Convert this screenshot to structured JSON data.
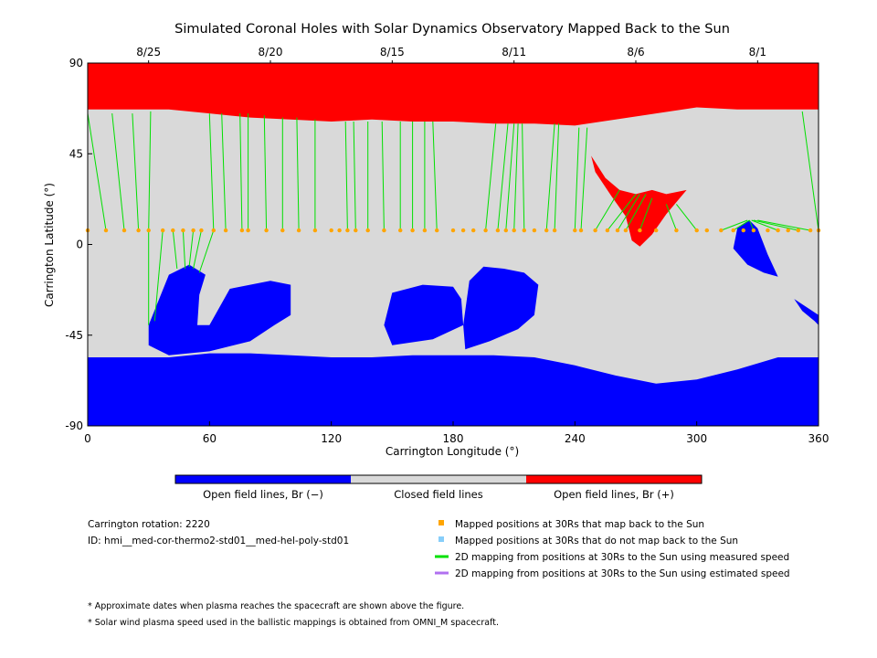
{
  "chart_data": {
    "type": "heatmap",
    "title": "Simulated Coronal Holes with Solar Dynamics Observatory Mapped Back to the Sun",
    "xlabel": "Carrington Longitude (°)",
    "ylabel": "Carrington Latitude (°)",
    "xlim": [
      0,
      360
    ],
    "ylim": [
      -90,
      90
    ],
    "x_ticks": [
      "0",
      "60",
      "120",
      "180",
      "240",
      "300",
      "360"
    ],
    "x_tick_values": [
      0,
      60,
      120,
      180,
      240,
      300,
      360
    ],
    "y_ticks": [
      "90",
      "45",
      "0",
      "-45",
      "-90"
    ],
    "y_tick_values": [
      90,
      45,
      0,
      -45,
      -90
    ],
    "top_dates": [
      "8/25",
      "8/20",
      "8/15",
      "8/11",
      "8/6",
      "8/1"
    ],
    "top_date_longitudes": [
      30,
      90,
      150,
      210,
      270,
      330
    ],
    "legend": {
      "neg": "Open field lines, Br (−)",
      "closed": "Closed field lines",
      "pos": "Open field lines, Br (+)"
    },
    "colors": {
      "neg": "#0000ff",
      "closed": "#d9d9d9",
      "pos": "#ff0000",
      "mapped": "#ffa500",
      "unmapped": "#87cefa",
      "measured": "#00e000",
      "estimated": "#b070f0"
    },
    "north_pos_boundary": [
      [
        0,
        67
      ],
      [
        20,
        67
      ],
      [
        40,
        67
      ],
      [
        60,
        65
      ],
      [
        80,
        63
      ],
      [
        100,
        62
      ],
      [
        120,
        61
      ],
      [
        140,
        62
      ],
      [
        160,
        61
      ],
      [
        180,
        61
      ],
      [
        200,
        60
      ],
      [
        220,
        60
      ],
      [
        240,
        59
      ],
      [
        260,
        62
      ],
      [
        280,
        65
      ],
      [
        300,
        68
      ],
      [
        320,
        67
      ],
      [
        340,
        67
      ],
      [
        360,
        67
      ]
    ],
    "south_neg_boundary": [
      [
        0,
        -56
      ],
      [
        20,
        -56
      ],
      [
        40,
        -56
      ],
      [
        60,
        -54
      ],
      [
        80,
        -54
      ],
      [
        100,
        -55
      ],
      [
        120,
        -56
      ],
      [
        140,
        -56
      ],
      [
        160,
        -55
      ],
      [
        180,
        -55
      ],
      [
        200,
        -55
      ],
      [
        220,
        -56
      ],
      [
        240,
        -60
      ],
      [
        260,
        -65
      ],
      [
        280,
        -69
      ],
      [
        300,
        -67
      ],
      [
        320,
        -62
      ],
      [
        340,
        -56
      ],
      [
        360,
        -56
      ]
    ],
    "coronal_holes": [
      {
        "polarity": "neg",
        "points": [
          [
            30,
            -40
          ],
          [
            40,
            -15
          ],
          [
            50,
            -10
          ],
          [
            58,
            -15
          ],
          [
            55,
            -25
          ],
          [
            54,
            -40
          ],
          [
            60,
            -40
          ],
          [
            70,
            -22
          ],
          [
            90,
            -18
          ],
          [
            100,
            -20
          ],
          [
            100,
            -35
          ],
          [
            92,
            -40
          ],
          [
            80,
            -48
          ],
          [
            60,
            -53
          ],
          [
            40,
            -55
          ],
          [
            30,
            -50
          ]
        ]
      },
      {
        "polarity": "neg",
        "points": [
          [
            146,
            -40
          ],
          [
            150,
            -24
          ],
          [
            165,
            -20
          ],
          [
            180,
            -21
          ],
          [
            184,
            -27
          ],
          [
            185,
            -40
          ],
          [
            170,
            -47
          ],
          [
            150,
            -50
          ]
        ]
      },
      {
        "polarity": "neg",
        "points": [
          [
            185,
            -40
          ],
          [
            188,
            -18
          ],
          [
            195,
            -11
          ],
          [
            205,
            -12
          ],
          [
            215,
            -14
          ],
          [
            222,
            -20
          ],
          [
            220,
            -35
          ],
          [
            212,
            -42
          ],
          [
            198,
            -48
          ],
          [
            186,
            -52
          ]
        ]
      },
      {
        "polarity": "neg",
        "points": [
          [
            318,
            -2
          ],
          [
            320,
            8
          ],
          [
            326,
            12
          ],
          [
            330,
            8
          ],
          [
            335,
            -5
          ],
          [
            340,
            -16
          ],
          [
            333,
            -14
          ],
          [
            325,
            -10
          ]
        ]
      },
      {
        "polarity": "neg",
        "points": [
          [
            348,
            -27
          ],
          [
            352,
            -33
          ],
          [
            358,
            -38
          ],
          [
            360,
            -40
          ],
          [
            360,
            -35
          ]
        ]
      },
      {
        "polarity": "pos",
        "points": [
          [
            248,
            44
          ],
          [
            255,
            33
          ],
          [
            262,
            27
          ],
          [
            270,
            25
          ],
          [
            278,
            27
          ],
          [
            285,
            25
          ],
          [
            295,
            27
          ],
          [
            285,
            15
          ],
          [
            278,
            5
          ],
          [
            272,
            -1
          ],
          [
            268,
            2
          ],
          [
            265,
            14
          ],
          [
            258,
            24
          ],
          [
            250,
            36
          ]
        ]
      }
    ],
    "mapped_positions": [
      [
        0,
        7
      ],
      [
        9,
        7
      ],
      [
        18,
        7
      ],
      [
        25,
        7
      ],
      [
        30,
        7
      ],
      [
        37,
        7
      ],
      [
        42,
        7
      ],
      [
        47,
        7
      ],
      [
        52,
        7
      ],
      [
        56,
        7
      ],
      [
        62,
        7
      ],
      [
        68,
        7
      ],
      [
        76,
        7
      ],
      [
        79,
        7
      ],
      [
        88,
        7
      ],
      [
        96,
        7
      ],
      [
        104,
        7
      ],
      [
        112,
        7
      ],
      [
        120,
        7
      ],
      [
        124,
        7
      ],
      [
        128,
        7
      ],
      [
        132,
        7
      ],
      [
        138,
        7
      ],
      [
        146,
        7
      ],
      [
        154,
        7
      ],
      [
        160,
        7
      ],
      [
        166,
        7
      ],
      [
        172,
        7
      ],
      [
        180,
        7
      ],
      [
        185,
        7
      ],
      [
        190,
        7
      ],
      [
        196,
        7
      ],
      [
        202,
        7
      ],
      [
        206,
        7
      ],
      [
        210,
        7
      ],
      [
        215,
        7
      ],
      [
        220,
        7
      ],
      [
        226,
        7
      ],
      [
        230,
        7
      ],
      [
        240,
        7
      ],
      [
        243,
        7
      ],
      [
        250,
        7
      ],
      [
        256,
        7
      ],
      [
        261,
        7
      ],
      [
        265,
        7
      ],
      [
        272,
        7
      ],
      [
        280,
        7
      ],
      [
        290,
        7
      ],
      [
        300,
        7
      ],
      [
        305,
        7
      ],
      [
        312,
        7
      ],
      [
        318,
        7
      ],
      [
        323,
        7
      ],
      [
        328,
        7
      ],
      [
        335,
        7
      ],
      [
        340,
        7
      ],
      [
        345,
        7
      ],
      [
        350,
        7
      ],
      [
        356,
        7
      ],
      [
        360,
        7
      ]
    ],
    "mapping_lines": [
      [
        [
          0,
          7
        ],
        [
          0,
          40
        ]
      ],
      [
        [
          9,
          7
        ],
        [
          0,
          65
        ]
      ],
      [
        [
          18,
          7
        ],
        [
          12,
          65
        ]
      ],
      [
        [
          25,
          7
        ],
        [
          22,
          65
        ]
      ],
      [
        [
          30,
          7
        ],
        [
          31,
          66
        ]
      ],
      [
        [
          62,
          7
        ],
        [
          60,
          65
        ]
      ],
      [
        [
          68,
          7
        ],
        [
          66,
          65
        ]
      ],
      [
        [
          76,
          7
        ],
        [
          75,
          65
        ]
      ],
      [
        [
          79,
          7
        ],
        [
          79,
          65
        ]
      ],
      [
        [
          88,
          7
        ],
        [
          87,
          64
        ]
      ],
      [
        [
          96,
          7
        ],
        [
          96,
          63
        ]
      ],
      [
        [
          104,
          7
        ],
        [
          103,
          63
        ]
      ],
      [
        [
          112,
          7
        ],
        [
          112,
          62
        ]
      ],
      [
        [
          128,
          7
        ],
        [
          127,
          61
        ]
      ],
      [
        [
          132,
          7
        ],
        [
          131,
          61
        ]
      ],
      [
        [
          138,
          7
        ],
        [
          138,
          61
        ]
      ],
      [
        [
          146,
          7
        ],
        [
          145,
          61
        ]
      ],
      [
        [
          154,
          7
        ],
        [
          154,
          61
        ]
      ],
      [
        [
          160,
          7
        ],
        [
          160,
          61
        ]
      ],
      [
        [
          166,
          7
        ],
        [
          166,
          61
        ]
      ],
      [
        [
          172,
          7
        ],
        [
          170,
          61
        ]
      ],
      [
        [
          196,
          7
        ],
        [
          201,
          60
        ]
      ],
      [
        [
          202,
          7
        ],
        [
          207,
          60
        ]
      ],
      [
        [
          206,
          7
        ],
        [
          210,
          60
        ]
      ],
      [
        [
          210,
          7
        ],
        [
          212,
          60
        ]
      ],
      [
        [
          215,
          7
        ],
        [
          214,
          60
        ]
      ],
      [
        [
          226,
          7
        ],
        [
          230,
          60
        ]
      ],
      [
        [
          230,
          7
        ],
        [
          232,
          60
        ]
      ],
      [
        [
          240,
          7
        ],
        [
          242,
          58
        ]
      ],
      [
        [
          243,
          7
        ],
        [
          246,
          58
        ]
      ],
      [
        [
          250,
          7
        ],
        [
          262,
          27
        ]
      ],
      [
        [
          256,
          7
        ],
        [
          270,
          25
        ]
      ],
      [
        [
          261,
          7
        ],
        [
          272,
          25
        ]
      ],
      [
        [
          265,
          7
        ],
        [
          275,
          25
        ]
      ],
      [
        [
          272,
          7
        ],
        [
          278,
          23
        ]
      ],
      [
        [
          290,
          7
        ],
        [
          285,
          20
        ]
      ],
      [
        [
          300,
          7
        ],
        [
          290,
          20
        ]
      ],
      [
        [
          312,
          7
        ],
        [
          325,
          12
        ]
      ],
      [
        [
          318,
          7
        ],
        [
          326,
          12
        ]
      ],
      [
        [
          328,
          7
        ],
        [
          326,
          12
        ]
      ],
      [
        [
          340,
          7
        ],
        [
          327,
          12
        ]
      ],
      [
        [
          350,
          7
        ],
        [
          328,
          12
        ]
      ],
      [
        [
          356,
          7
        ],
        [
          330,
          12
        ]
      ],
      [
        [
          360,
          7
        ],
        [
          352,
          66
        ]
      ],
      [
        [
          30,
          7
        ],
        [
          30,
          -40
        ]
      ],
      [
        [
          37,
          7
        ],
        [
          33,
          -38
        ]
      ],
      [
        [
          42,
          7
        ],
        [
          44,
          -12
        ]
      ],
      [
        [
          47,
          7
        ],
        [
          48,
          -12
        ]
      ],
      [
        [
          52,
          7
        ],
        [
          50,
          -11
        ]
      ],
      [
        [
          56,
          7
        ],
        [
          52,
          -12
        ]
      ],
      [
        [
          62,
          7
        ],
        [
          55,
          -14
        ]
      ]
    ],
    "info": {
      "rotation": "Carrington rotation: 2220",
      "id": "ID: hmi__med-cor-thermo2-std01__med-hel-poly-std01"
    },
    "legend2": [
      "Mapped positions at 30Rs that map back to the Sun",
      "Mapped positions at 30Rs that do not map back to the Sun",
      "2D mapping from positions at 30Rs to the Sun using measured speed",
      "2D mapping from positions at 30Rs to the Sun using estimated speed"
    ],
    "notes": [
      "* Approximate dates when plasma reaches the spacecraft are shown above the figure.",
      "* Solar wind plasma speed used in the ballistic mappings is obtained from OMNI_M spacecraft."
    ]
  }
}
